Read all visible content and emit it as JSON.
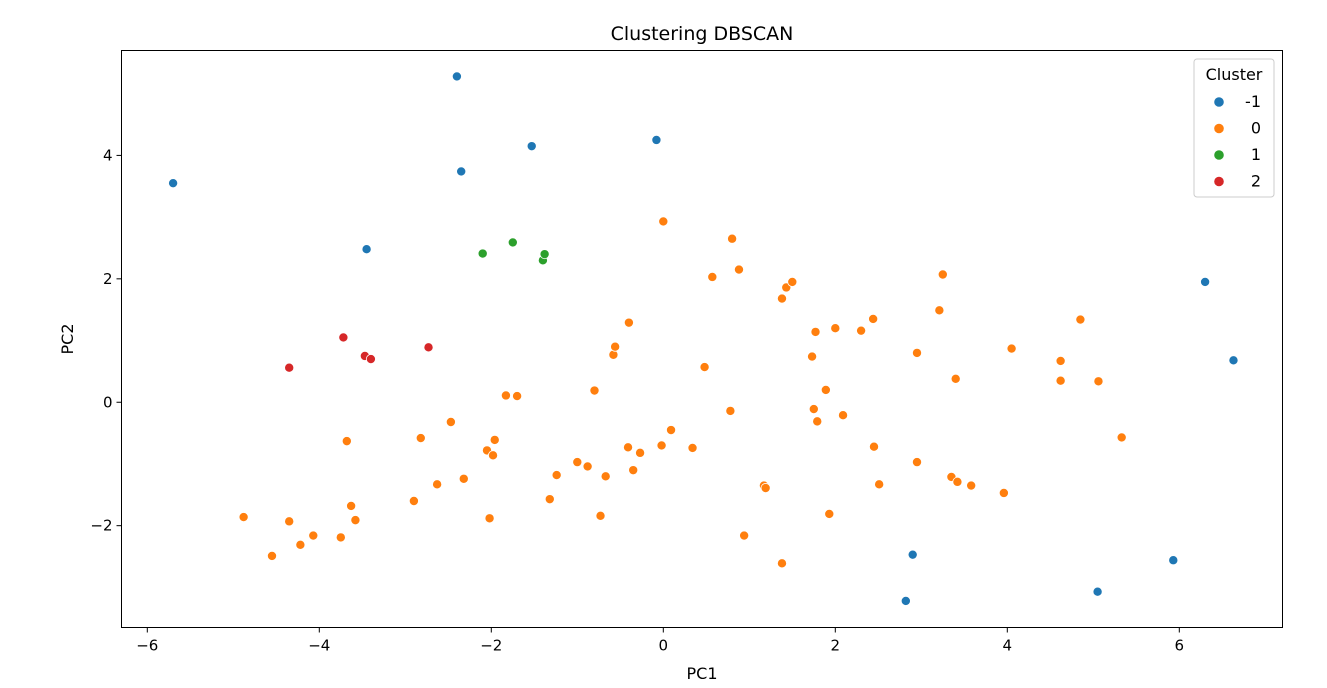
{
  "chart_data": {
    "type": "scatter",
    "title": "Clustering DBSCAN",
    "xlabel": "PC1",
    "ylabel": "PC2",
    "xlim": [
      -6.3,
      7.2
    ],
    "ylim": [
      -3.65,
      5.7
    ],
    "xticks": [
      -6,
      -4,
      -2,
      0,
      2,
      4,
      6
    ],
    "xtick_labels": [
      "−6",
      "−4",
      "−2",
      "0",
      "2",
      "4",
      "6"
    ],
    "yticks": [
      -2,
      0,
      2,
      4
    ],
    "ytick_labels": [
      "−2",
      "0",
      "2",
      "4"
    ],
    "grid": false,
    "legend": {
      "title": "Cluster",
      "placement": "top-right",
      "entries": [
        "-1",
        "0",
        "1",
        "2"
      ]
    },
    "series": [
      {
        "name": "-1",
        "color": "#1f77b4",
        "points": [
          [
            -5.7,
            3.55
          ],
          [
            -3.45,
            2.48
          ],
          [
            -2.4,
            5.28
          ],
          [
            -2.35,
            3.74
          ],
          [
            -1.53,
            4.15
          ],
          [
            -0.08,
            4.25
          ],
          [
            6.3,
            1.95
          ],
          [
            6.63,
            0.68
          ],
          [
            2.9,
            -2.47
          ],
          [
            2.82,
            -3.22
          ],
          [
            5.05,
            -3.07
          ],
          [
            5.93,
            -2.56
          ]
        ]
      },
      {
        "name": "0",
        "color": "#ff7f0e",
        "points": [
          [
            -4.88,
            -1.86
          ],
          [
            -4.55,
            -2.49
          ],
          [
            -4.35,
            -1.93
          ],
          [
            -4.22,
            -2.31
          ],
          [
            -4.07,
            -2.16
          ],
          [
            -3.75,
            -2.19
          ],
          [
            -3.68,
            -0.63
          ],
          [
            -3.63,
            -1.68
          ],
          [
            -3.58,
            -1.91
          ],
          [
            -2.9,
            -1.6
          ],
          [
            -2.82,
            -0.58
          ],
          [
            -2.63,
            -1.33
          ],
          [
            -2.47,
            -0.32
          ],
          [
            -2.32,
            -1.24
          ],
          [
            -2.05,
            -0.78
          ],
          [
            -2.02,
            -1.88
          ],
          [
            -1.98,
            -0.86
          ],
          [
            -1.96,
            -0.61
          ],
          [
            -1.83,
            0.11
          ],
          [
            -1.7,
            0.1
          ],
          [
            -1.32,
            -1.57
          ],
          [
            -1.24,
            -1.18
          ],
          [
            -1.0,
            -0.97
          ],
          [
            -0.88,
            -1.04
          ],
          [
            -0.8,
            0.19
          ],
          [
            -0.73,
            -1.84
          ],
          [
            -0.67,
            -1.2
          ],
          [
            -0.58,
            0.77
          ],
          [
            -0.56,
            0.9
          ],
          [
            -0.41,
            -0.73
          ],
          [
            -0.4,
            1.29
          ],
          [
            -0.35,
            -1.1
          ],
          [
            -0.27,
            -0.82
          ],
          [
            -0.02,
            -0.7
          ],
          [
            0.0,
            2.93
          ],
          [
            0.09,
            -0.45
          ],
          [
            0.34,
            -0.74
          ],
          [
            0.48,
            0.57
          ],
          [
            0.57,
            2.03
          ],
          [
            0.78,
            -0.14
          ],
          [
            0.8,
            2.65
          ],
          [
            0.88,
            2.15
          ],
          [
            0.94,
            -2.16
          ],
          [
            1.17,
            -1.35
          ],
          [
            1.19,
            -1.39
          ],
          [
            1.38,
            1.68
          ],
          [
            1.38,
            -2.61
          ],
          [
            1.43,
            1.86
          ],
          [
            1.5,
            1.95
          ],
          [
            1.73,
            0.74
          ],
          [
            1.75,
            -0.11
          ],
          [
            1.77,
            1.14
          ],
          [
            1.79,
            -0.31
          ],
          [
            1.89,
            0.2
          ],
          [
            1.93,
            -1.81
          ],
          [
            2.0,
            1.2
          ],
          [
            2.09,
            -0.21
          ],
          [
            2.3,
            1.16
          ],
          [
            2.44,
            1.35
          ],
          [
            2.45,
            -0.72
          ],
          [
            2.51,
            -1.33
          ],
          [
            2.95,
            0.8
          ],
          [
            2.95,
            -0.97
          ],
          [
            3.21,
            1.49
          ],
          [
            3.25,
            2.07
          ],
          [
            3.35,
            -1.21
          ],
          [
            3.4,
            0.38
          ],
          [
            3.42,
            -1.29
          ],
          [
            3.58,
            -1.35
          ],
          [
            3.96,
            -1.47
          ],
          [
            4.05,
            0.87
          ],
          [
            4.62,
            0.67
          ],
          [
            4.62,
            0.35
          ],
          [
            4.85,
            1.34
          ],
          [
            5.06,
            0.34
          ],
          [
            5.33,
            -0.57
          ]
        ]
      },
      {
        "name": "1",
        "color": "#2ca02c",
        "points": [
          [
            -2.1,
            2.41
          ],
          [
            -1.75,
            2.59
          ],
          [
            -1.4,
            2.3
          ],
          [
            -1.38,
            2.4
          ]
        ]
      },
      {
        "name": "2",
        "color": "#d62728",
        "points": [
          [
            -4.35,
            0.56
          ],
          [
            -3.72,
            1.05
          ],
          [
            -3.47,
            0.75
          ],
          [
            -3.4,
            0.7
          ],
          [
            -2.73,
            0.89
          ]
        ]
      }
    ]
  }
}
